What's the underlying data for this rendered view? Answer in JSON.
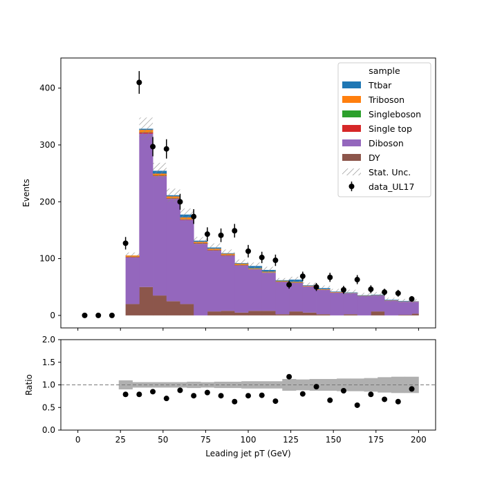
{
  "chart_data": [
    {
      "type": "stacked-histogram",
      "ylabel": "Events",
      "ylim": [
        -22,
        453
      ],
      "xlim": [
        -10,
        210
      ],
      "yticks": [
        0,
        100,
        200,
        300,
        400
      ],
      "bins": [
        20,
        28,
        36,
        44,
        52,
        60,
        68,
        76,
        84,
        92,
        100,
        108,
        116,
        124,
        132,
        140,
        148,
        156,
        164,
        172,
        180,
        188,
        196,
        200
      ],
      "series": [
        {
          "name": "DY",
          "color": "#8c564b",
          "values": [
            0,
            20,
            50,
            35,
            25,
            20,
            0,
            7,
            8,
            5,
            8,
            8,
            2,
            7,
            5,
            2,
            0,
            2,
            0,
            7,
            0,
            1,
            3
          ]
        },
        {
          "name": "Diboson",
          "color": "#9467bd",
          "values": [
            0,
            82,
            270,
            210,
            180,
            148,
            126,
            107,
            97,
            83,
            73,
            67,
            57,
            50,
            46,
            43,
            40,
            37,
            34,
            28,
            26,
            23,
            21
          ]
        },
        {
          "name": "Single top",
          "color": "#d62728",
          "values": [
            0,
            1,
            2,
            1,
            1,
            1,
            1,
            1,
            1,
            0.5,
            0.5,
            0.5,
            0.5,
            0.5,
            0,
            0,
            0,
            0,
            0,
            0,
            0,
            0,
            0
          ]
        },
        {
          "name": "Singleboson",
          "color": "#2ca02c",
          "values": [
            0,
            0.5,
            0.5,
            0.5,
            0.5,
            0.5,
            0.5,
            0.5,
            0.5,
            0.5,
            0.5,
            0.5,
            0.5,
            0.5,
            0,
            0,
            0,
            0,
            0,
            0,
            0,
            0,
            0
          ]
        },
        {
          "name": "Triboson",
          "color": "#ff7f0e",
          "values": [
            0,
            2,
            4,
            3,
            3,
            3,
            2,
            2,
            2,
            2,
            1,
            1,
            1,
            1,
            1,
            1,
            1,
            0.5,
            0.5,
            0.5,
            0.5,
            0.5,
            0.5
          ]
        },
        {
          "name": "Ttbar",
          "color": "#1f77b4",
          "values": [
            0,
            0,
            2,
            5,
            2,
            5,
            2,
            2,
            1,
            1,
            4,
            3,
            1,
            4,
            1,
            2,
            1,
            1,
            1,
            1,
            1,
            1,
            0.5
          ]
        }
      ],
      "stat_unc": {
        "name": "Stat. Unc.",
        "rel": [
          0,
          0.05,
          0.06,
          0.055,
          0.055,
          0.06,
          0.05,
          0.06,
          0.06,
          0.07,
          0.07,
          0.07,
          0.06,
          0.08,
          0.09,
          0.1,
          0.11,
          0.12,
          0.12,
          0.13,
          0.13,
          0.14,
          0.15
        ]
      },
      "data": {
        "name": "data_UL17",
        "x": [
          4,
          12,
          20,
          28,
          36,
          44,
          52,
          60,
          68,
          76,
          84,
          92,
          100,
          108,
          116,
          124,
          132,
          140,
          148,
          156,
          164,
          172,
          180,
          188,
          196
        ],
        "y": [
          0,
          0,
          0,
          127,
          410,
          297,
          293,
          200,
          174,
          143,
          141,
          149,
          113,
          102,
          97,
          54,
          69,
          50,
          67,
          45,
          63,
          46,
          41,
          39,
          29
        ],
        "err": [
          0,
          0,
          0,
          11,
          20,
          17,
          17,
          14,
          13,
          12,
          12,
          12,
          11,
          10,
          10,
          7,
          8,
          7,
          8,
          7,
          8,
          7,
          6,
          6,
          5
        ]
      },
      "legend": {
        "title": "sample",
        "placement": "top-right"
      }
    },
    {
      "type": "scatter",
      "ylabel": "Ratio",
      "xlabel": "Leading jet  pT (GeV)",
      "xlim": [
        -10,
        210
      ],
      "ylim": [
        0.0,
        2.0
      ],
      "yticks": [
        0.0,
        0.5,
        1.0,
        1.5,
        2.0
      ],
      "xticks": [
        0,
        25,
        50,
        75,
        100,
        125,
        150,
        175,
        200
      ],
      "reference_line": 1.0,
      "x": [
        28,
        36,
        44,
        52,
        60,
        68,
        76,
        84,
        92,
        100,
        108,
        116,
        124,
        132,
        140,
        148,
        156,
        164,
        172,
        180,
        188,
        196
      ],
      "y": [
        0.79,
        0.79,
        0.85,
        0.7,
        0.88,
        0.76,
        0.83,
        0.76,
        0.63,
        0.76,
        0.77,
        0.64,
        1.18,
        0.8,
        0.96,
        0.66,
        0.87,
        0.55,
        0.79,
        0.68,
        0.63,
        0.91
      ],
      "band_x_edges": [
        24,
        32,
        40,
        48,
        56,
        64,
        72,
        80,
        88,
        96,
        104,
        112,
        120,
        128,
        136,
        144,
        152,
        160,
        168,
        176,
        184,
        192,
        200
      ],
      "band_half_width": [
        0.1,
        0.06,
        0.06,
        0.06,
        0.06,
        0.07,
        0.06,
        0.07,
        0.07,
        0.08,
        0.08,
        0.08,
        0.13,
        0.12,
        0.13,
        0.13,
        0.14,
        0.14,
        0.15,
        0.17,
        0.18,
        0.18,
        0.22
      ]
    }
  ]
}
